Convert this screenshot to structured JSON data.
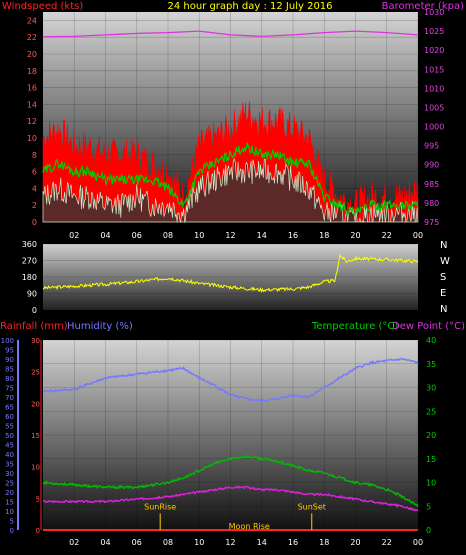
{
  "chart_data": [
    {
      "type": "line",
      "title": "24 hour graph day : 12 July 2016",
      "ylabel_left": "Windspeed (kts)",
      "ylabel_right": "Barometer (kpa)",
      "x_ticks": [
        "02",
        "04",
        "06",
        "08",
        "10",
        "12",
        "14",
        "16",
        "18",
        "20",
        "22",
        "00"
      ],
      "left_ticks": [
        0,
        2,
        4,
        6,
        8,
        10,
        12,
        14,
        16,
        18,
        20,
        22,
        24
      ],
      "right_ticks": [
        975,
        980,
        985,
        990,
        995,
        1000,
        1005,
        1010,
        1015,
        1020,
        1025,
        1030
      ],
      "ylim_left": [
        0,
        25
      ],
      "ylim_right": [
        975,
        1030
      ],
      "x_range_hours": [
        0,
        24
      ],
      "series": [
        {
          "name": "Windspeed (kts)",
          "color": "#ff0000",
          "x": [
            0,
            1,
            2,
            3,
            4,
            5,
            6,
            7,
            8,
            9,
            10,
            11,
            12,
            13,
            14,
            15,
            16,
            17,
            18,
            19,
            20,
            21,
            22,
            23,
            24
          ],
          "values": [
            10,
            11,
            9,
            9,
            8,
            8,
            8,
            7,
            6,
            3,
            9,
            10,
            11,
            13,
            12,
            12,
            11,
            10,
            5,
            3,
            2,
            3,
            3,
            3,
            4
          ]
        },
        {
          "name": "Wind average",
          "color": "#00cc00",
          "x": [
            0,
            1,
            2,
            3,
            4,
            5,
            6,
            7,
            8,
            9,
            10,
            11,
            12,
            13,
            14,
            15,
            16,
            17,
            18,
            19,
            20,
            21,
            22,
            23,
            24
          ],
          "values": [
            6,
            7,
            6,
            6,
            5,
            5,
            5,
            5,
            4,
            2,
            6,
            7,
            8,
            9,
            8,
            8,
            7,
            7,
            3,
            2,
            1,
            2,
            2,
            2,
            2
          ]
        },
        {
          "name": "Wind lull",
          "color": "#cceecc",
          "x": [
            0,
            1,
            2,
            3,
            4,
            5,
            6,
            7,
            8,
            9,
            10,
            11,
            12,
            13,
            14,
            15,
            16,
            17,
            18,
            19,
            20,
            21,
            22,
            23,
            24
          ],
          "values": [
            3,
            4,
            3,
            3,
            2,
            2,
            3,
            2,
            2,
            1,
            4,
            5,
            6,
            6,
            6,
            6,
            5,
            4,
            1,
            1,
            0,
            1,
            1,
            1,
            1
          ]
        },
        {
          "name": "Barometer (kpa)",
          "color": "#dd33dd",
          "x": [
            0,
            2,
            4,
            6,
            8,
            10,
            12,
            14,
            16,
            18,
            20,
            22,
            24
          ],
          "values": [
            1023.5,
            1023.6,
            1024,
            1024.4,
            1024.6,
            1025,
            1024,
            1023.6,
            1024,
            1024.6,
            1025,
            1024.6,
            1024
          ]
        }
      ]
    },
    {
      "type": "line",
      "title": "",
      "ylabel_right": "N W S E N",
      "right_labels": [
        "N",
        "W",
        "S",
        "E",
        "N"
      ],
      "left_ticks": [
        0,
        90,
        180,
        270,
        360
      ],
      "ylim": [
        0,
        360
      ],
      "series": [
        {
          "name": "Wind direction",
          "color": "#ffff00",
          "x": [
            0,
            2,
            4,
            6,
            8,
            10,
            12,
            14,
            16,
            17,
            18,
            18.7,
            19,
            19.4,
            20,
            22,
            24
          ],
          "values": [
            120,
            130,
            140,
            155,
            175,
            145,
            125,
            110,
            115,
            125,
            155,
            160,
            300,
            265,
            280,
            275,
            265
          ]
        }
      ]
    },
    {
      "type": "line",
      "ylabel_left": "Rainfall (mm)",
      "ylabel_left2": "Humidity (%)",
      "ylabel_right": "Temperature (°C)",
      "ylabel_right2": "Dew Point (°C)",
      "humidity_ticks": [
        0,
        5,
        10,
        15,
        20,
        25,
        30,
        35,
        40,
        45,
        50,
        55,
        60,
        65,
        70,
        75,
        80,
        85,
        90,
        95,
        100
      ],
      "rain_ticks": [
        0,
        5,
        10,
        15,
        20,
        25,
        30
      ],
      "temp_ticks": [
        0,
        5,
        10,
        15,
        20,
        25,
        30,
        35,
        40
      ],
      "ylim_temp": [
        0,
        40
      ],
      "ylim_humidity": [
        0,
        100
      ],
      "ylim_rain": [
        0,
        30
      ],
      "events": [
        {
          "label": "SunRise",
          "x": 7.5
        },
        {
          "label": "SunSet",
          "x": 17.2
        },
        {
          "label": "Moon Rise",
          "x": 13.2
        }
      ],
      "series": [
        {
          "name": "Humidity (%)",
          "color": "#7777ff",
          "x": [
            0,
            2,
            4,
            6,
            8,
            9,
            10,
            11,
            12,
            13,
            14,
            15,
            16,
            17,
            18,
            19,
            20,
            21,
            22,
            23,
            24
          ],
          "values": [
            73,
            74,
            80,
            82,
            84,
            85,
            80,
            76,
            71,
            69,
            68,
            69,
            71,
            70,
            75,
            80,
            85,
            88,
            89,
            90,
            88
          ]
        },
        {
          "name": "Temperature (°C)",
          "color": "#00bb00",
          "x": [
            0,
            2,
            4,
            6,
            8,
            9,
            10,
            11,
            12,
            13,
            14,
            15,
            16,
            17,
            18,
            19,
            20,
            21,
            22,
            23,
            24
          ],
          "values": [
            10,
            9.5,
            9,
            9,
            10,
            11,
            12.5,
            14,
            15,
            15.5,
            15,
            14.5,
            13.5,
            12.5,
            12,
            11,
            10,
            9.5,
            8.5,
            7,
            5
          ]
        },
        {
          "name": "Dew Point (°C)",
          "color": "#dd22dd",
          "x": [
            0,
            2,
            4,
            6,
            8,
            9,
            10,
            11,
            12,
            13,
            14,
            15,
            16,
            17,
            18,
            19,
            20,
            21,
            22,
            23,
            24
          ],
          "values": [
            6,
            6,
            6,
            6.5,
            7,
            7.5,
            8,
            8.5,
            9,
            9,
            8.5,
            8.5,
            8,
            7.5,
            7.5,
            7,
            6.5,
            6,
            5.5,
            5,
            4
          ]
        },
        {
          "name": "Rainfall (mm)",
          "color": "#ff2222",
          "x": [
            0,
            24
          ],
          "values": [
            0,
            0
          ]
        }
      ]
    }
  ],
  "colors": {
    "wind": "#ff0000",
    "wind_avg": "#00cc00",
    "wind_lull": "#cceecc",
    "baro": "#dd33dd",
    "dir": "#ffff00",
    "humidity": "#7777ff",
    "temp": "#00bb00",
    "dew": "#dd22dd",
    "rain": "#ff2222",
    "title": "#ffff00",
    "event": "#ffcc00",
    "axis_text": "#ffffff"
  },
  "labels": {
    "top_left": "Windspeed (kts)",
    "top_title": "24 hour graph day : 12 July 2016",
    "top_right": "Barometer (kpa)",
    "rain": "Rainfall (mm)",
    "humidity": "Humidity (%)",
    "temp": "Temperature (°C)",
    "dew": "Dew Point (°C)"
  }
}
